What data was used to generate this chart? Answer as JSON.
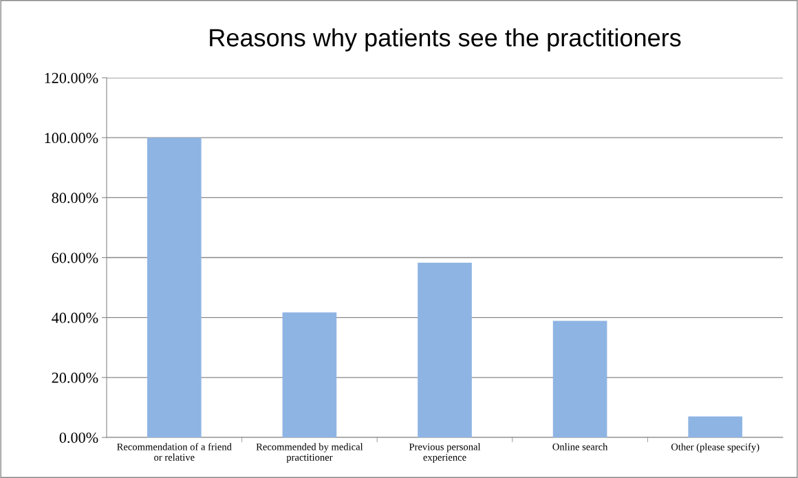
{
  "chart_data": {
    "type": "bar",
    "title": "Reasons why patients see the practitioners",
    "categories": [
      "Recommendation of a friend\nor relative",
      "Recommended by medical\npractitioner",
      "Previous personal\nexperience",
      "Online search",
      "Other (please specify)"
    ],
    "values": [
      100,
      41.7,
      58.3,
      38.9,
      7.0
    ],
    "color": "#8eb4e3",
    "ylim": [
      0,
      120
    ],
    "yticks": [
      {
        "value": 0,
        "label": "0.00%"
      },
      {
        "value": 20,
        "label": "20.00%"
      },
      {
        "value": 40,
        "label": "40.00%"
      },
      {
        "value": 60,
        "label": "60.00%"
      },
      {
        "value": 80,
        "label": "80.00%"
      },
      {
        "value": 100,
        "label": "100.00%"
      },
      {
        "value": 120,
        "label": "120.00%"
      }
    ],
    "grid": "y",
    "legend": false
  }
}
